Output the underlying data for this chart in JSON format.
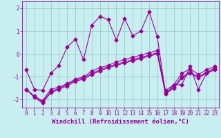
{
  "xlabel": "Windchill (Refroidissement éolien,°C)",
  "background_color": "#c8eef0",
  "grid_color": "#99cccc",
  "line_color": "#990099",
  "xlim": [
    -0.5,
    23.5
  ],
  "ylim": [
    -2.35,
    2.3
  ],
  "yticks": [
    -2,
    -1,
    0,
    1,
    2
  ],
  "xticks": [
    0,
    1,
    2,
    3,
    4,
    5,
    6,
    7,
    8,
    9,
    10,
    11,
    12,
    13,
    14,
    15,
    16,
    17,
    18,
    19,
    20,
    21,
    22,
    23
  ],
  "series": [
    [
      -0.7,
      -1.55,
      -1.6,
      -0.85,
      -0.5,
      0.3,
      0.65,
      -0.25,
      1.25,
      1.65,
      1.5,
      0.6,
      1.55,
      0.8,
      1.0,
      1.85,
      0.75,
      -1.75,
      -1.35,
      -1.35,
      -0.55,
      -1.55,
      -0.85,
      -0.6
    ],
    [
      -1.55,
      -1.85,
      -2.05,
      -1.55,
      -1.45,
      -1.3,
      -1.1,
      -1.0,
      -0.75,
      -0.6,
      -0.5,
      -0.35,
      -0.25,
      -0.15,
      -0.05,
      0.05,
      0.15,
      -1.6,
      -1.35,
      -0.85,
      -0.65,
      -0.9,
      -0.7,
      -0.55
    ],
    [
      -1.55,
      -1.85,
      -2.1,
      -1.65,
      -1.5,
      -1.35,
      -1.15,
      -1.05,
      -0.85,
      -0.7,
      -0.55,
      -0.45,
      -0.35,
      -0.25,
      -0.15,
      -0.05,
      0.05,
      -1.7,
      -1.45,
      -1.0,
      -0.8,
      -1.0,
      -0.8,
      -0.65
    ],
    [
      -1.55,
      -1.9,
      -2.15,
      -1.7,
      -1.55,
      -1.4,
      -1.2,
      -1.1,
      -0.9,
      -0.75,
      -0.6,
      -0.5,
      -0.4,
      -0.3,
      -0.2,
      -0.1,
      0.0,
      -1.75,
      -1.5,
      -1.05,
      -0.85,
      -1.05,
      -0.85,
      -0.7
    ]
  ],
  "marker": "D",
  "markersize": 2.5,
  "linewidth": 0.8,
  "tick_fontsize": 5.5,
  "label_fontsize": 6.5
}
